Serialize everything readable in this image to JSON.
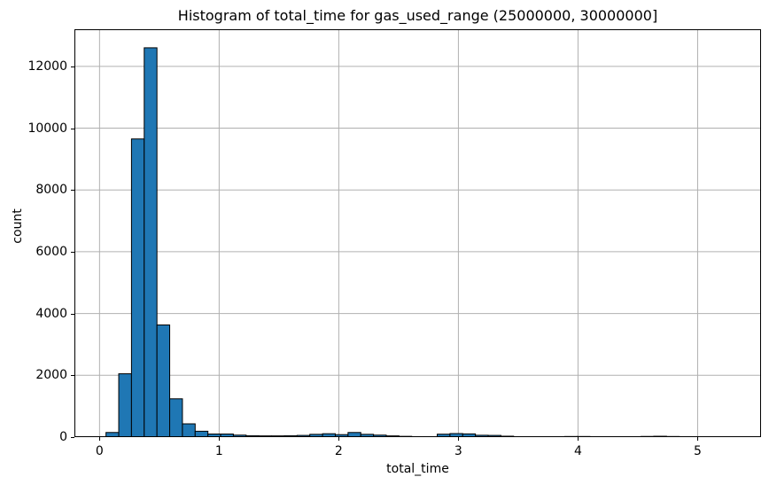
{
  "chart_data": {
    "type": "bar",
    "subtype": "histogram",
    "title": "Histogram of total_time for gas_used_range (25000000, 30000000]",
    "xlabel": "total_time",
    "ylabel": "count",
    "bin_start": 0.054,
    "bin_width": 0.1065,
    "counts": [
      150,
      2050,
      9650,
      12600,
      3630,
      1240,
      430,
      190,
      100,
      100,
      65,
      45,
      40,
      40,
      45,
      55,
      90,
      110,
      80,
      150,
      90,
      65,
      40,
      25,
      15,
      15,
      95,
      115,
      105,
      60,
      55,
      30,
      5,
      5,
      8,
      12,
      20,
      20,
      12,
      0,
      0,
      0,
      22,
      28,
      20,
      0,
      0
    ],
    "x_ticks": [
      0,
      1,
      2,
      3,
      4,
      5
    ],
    "y_ticks": [
      0,
      2000,
      4000,
      6000,
      8000,
      10000,
      12000
    ],
    "xlim": [
      -0.21,
      5.53
    ],
    "ylim": [
      0,
      13200
    ],
    "grid": true,
    "legend": "none",
    "colors": {
      "bar_fill": "#1f77b4",
      "bar_edge": "#000000",
      "grid_line": "#b0b0b0",
      "spine": "#000000",
      "background": "#ffffff",
      "text": "#000000"
    }
  }
}
